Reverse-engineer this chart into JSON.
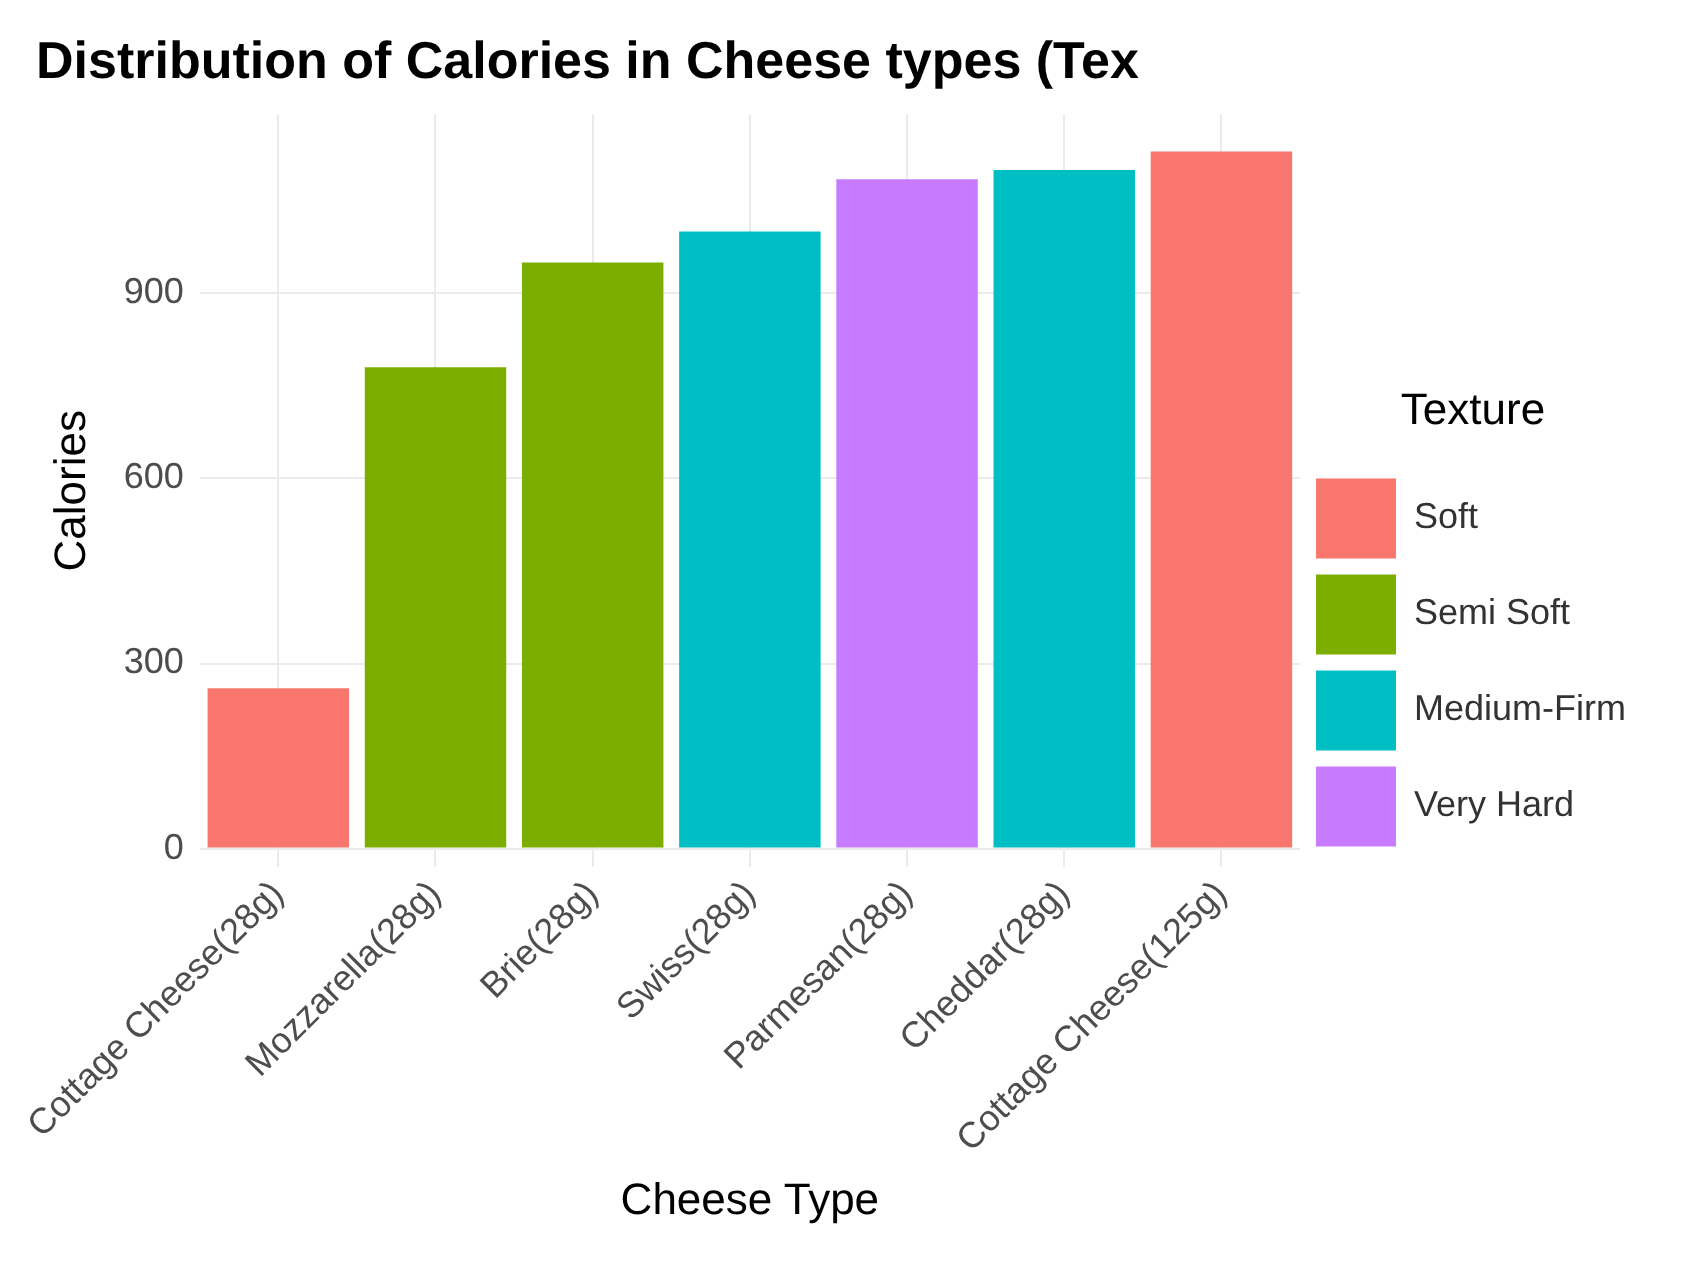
{
  "chart_data": {
    "type": "bar",
    "title": "Distribution of Calories in Cheese types (Tex",
    "xlabel": "Cheese Type",
    "ylabel": "Calories",
    "legend_title": "Texture",
    "categories": [
      "Cottage Cheese(28g)",
      "Mozzarella(28g)",
      "Brie(28g)",
      "Swiss(28g)",
      "Parmesan(28g)",
      "Cheddar(28g)",
      "Cottage Cheese(125g)"
    ],
    "series": [
      {
        "name": "Soft",
        "color": "#f8766d",
        "values": [
          260,
          null,
          null,
          null,
          null,
          null,
          1130
        ]
      },
      {
        "name": "Semi Soft",
        "color": "#7cae00",
        "values": [
          null,
          780,
          950,
          null,
          null,
          null,
          null
        ]
      },
      {
        "name": "Medium-Firm",
        "color": "#00bfc4",
        "values": [
          null,
          null,
          null,
          1000,
          null,
          1100,
          null
        ]
      },
      {
        "name": "Very Hard",
        "color": "#c77cff",
        "values": [
          null,
          null,
          null,
          null,
          1085,
          null,
          null
        ]
      }
    ],
    "ylim": [
      -30,
      1190
    ],
    "yticks": [
      0,
      300,
      600,
      900
    ],
    "grid": true,
    "legend": "right"
  }
}
